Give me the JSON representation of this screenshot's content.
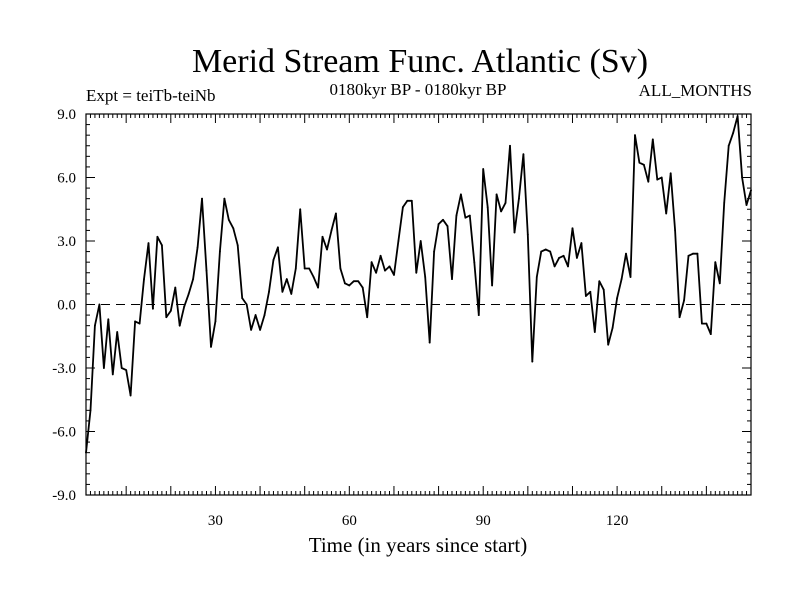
{
  "chart_data": {
    "type": "line",
    "title": "Merid Stream Func. Atlantic (Sv)",
    "subtitle_left": "Expt = teiTb-teiNb",
    "subtitle_center": "0180kyr BP - 0180kyr BP",
    "subtitle_right": "ALL_MONTHS",
    "xlabel": "Time (in years since start)",
    "ylabel": "",
    "xlim": [
      1,
      150
    ],
    "ylim": [
      -9,
      9
    ],
    "xticks": [
      30,
      60,
      90,
      120
    ],
    "xtick_labels": [
      "30",
      "60",
      "90",
      "120"
    ],
    "yticks": [
      9,
      6,
      3,
      0,
      -3,
      -6,
      -9
    ],
    "ytick_labels": [
      "9.0",
      "6.0",
      "3.0",
      "0.0",
      "-3.0",
      "-6.0",
      "-9.0"
    ],
    "zero_line": true,
    "series": [
      {
        "name": "Merid Stream Func.",
        "x": [
          1,
          2,
          3,
          4,
          5,
          6,
          7,
          8,
          9,
          10,
          11,
          12,
          13,
          14,
          15,
          16,
          17,
          18,
          19,
          20,
          21,
          22,
          23,
          24,
          25,
          26,
          27,
          28,
          29,
          30,
          31,
          32,
          33,
          34,
          35,
          36,
          37,
          38,
          39,
          40,
          41,
          42,
          43,
          44,
          45,
          46,
          47,
          48,
          49,
          50,
          51,
          52,
          53,
          54,
          55,
          56,
          57,
          58,
          59,
          60,
          61,
          62,
          63,
          64,
          65,
          66,
          67,
          68,
          69,
          70,
          71,
          72,
          73,
          74,
          75,
          76,
          77,
          78,
          79,
          80,
          81,
          82,
          83,
          84,
          85,
          86,
          87,
          88,
          89,
          90,
          91,
          92,
          93,
          94,
          95,
          96,
          97,
          98,
          99,
          100,
          101,
          102,
          103,
          104,
          105,
          106,
          107,
          108,
          109,
          110,
          111,
          112,
          113,
          114,
          115,
          116,
          117,
          118,
          119,
          120,
          121,
          122,
          123,
          124,
          125,
          126,
          127,
          128,
          129,
          130,
          131,
          132,
          133,
          134,
          135,
          136,
          137,
          138,
          139,
          140,
          141,
          142,
          143,
          144,
          145,
          146,
          147,
          148,
          149,
          150
        ],
        "values": [
          -7.0,
          -5.0,
          -1.0,
          0.0,
          -3.0,
          -0.7,
          -3.3,
          -1.3,
          -3.0,
          -3.1,
          -4.3,
          -0.8,
          -0.9,
          1.2,
          2.9,
          -0.2,
          3.2,
          2.8,
          -0.6,
          -0.3,
          0.8,
          -1.0,
          -0.1,
          0.5,
          1.2,
          2.7,
          5.0,
          1.6,
          -2.0,
          -0.8,
          2.5,
          5.0,
          4.0,
          3.6,
          2.8,
          0.3,
          0.0,
          -1.2,
          -0.5,
          -1.2,
          -0.5,
          0.6,
          2.1,
          2.7,
          0.6,
          1.2,
          0.5,
          1.7,
          4.5,
          1.7,
          1.7,
          1.3,
          0.8,
          3.2,
          2.6,
          3.5,
          4.3,
          1.7,
          1.0,
          0.9,
          1.1,
          1.1,
          0.8,
          -0.6,
          2.0,
          1.5,
          2.3,
          1.6,
          1.8,
          1.4,
          3.0,
          4.6,
          4.9,
          4.9,
          1.5,
          3.0,
          1.3,
          -1.8,
          2.5,
          3.8,
          4.0,
          3.7,
          1.2,
          4.2,
          5.2,
          4.1,
          4.2,
          2.0,
          -0.5,
          6.4,
          4.6,
          0.9,
          5.2,
          4.4,
          4.8,
          7.5,
          3.4,
          5.0,
          7.1,
          3.3,
          -2.7,
          1.3,
          2.5,
          2.6,
          2.5,
          1.8,
          2.2,
          2.3,
          1.8,
          3.6,
          2.2,
          2.9,
          0.4,
          0.6,
          -1.3,
          1.1,
          0.7,
          -1.9,
          -1.1,
          0.3,
          1.2,
          2.4,
          1.3,
          8.0,
          6.7,
          6.6,
          5.8,
          7.8,
          5.9,
          6.0,
          4.3,
          6.2,
          3.5,
          -0.6,
          0.2,
          2.3,
          2.4,
          2.4,
          -0.9,
          -0.9,
          -1.4,
          2.0,
          1.0,
          4.8,
          7.5,
          8.1,
          8.9,
          6.0,
          4.7,
          5.4
        ]
      }
    ]
  }
}
